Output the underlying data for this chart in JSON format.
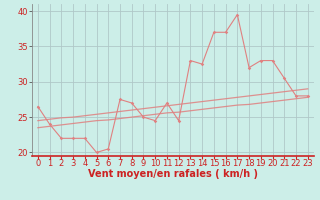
{
  "xlabel": "Vent moyen/en rafales ( km/h )",
  "background_color": "#cceee8",
  "line_color": "#e08080",
  "grid_color": "#b0c8c8",
  "xlim": [
    -0.5,
    23.5
  ],
  "ylim": [
    19.5,
    41
  ],
  "yticks": [
    20,
    25,
    30,
    35,
    40
  ],
  "xticks": [
    0,
    1,
    2,
    3,
    4,
    5,
    6,
    7,
    8,
    9,
    10,
    11,
    12,
    13,
    14,
    15,
    16,
    17,
    18,
    19,
    20,
    21,
    22,
    23
  ],
  "x": [
    0,
    1,
    2,
    3,
    4,
    5,
    6,
    7,
    8,
    9,
    10,
    11,
    12,
    13,
    14,
    15,
    16,
    17,
    18,
    19,
    20,
    21,
    22,
    23
  ],
  "y_avg": [
    26.5,
    24.0,
    22.0,
    22.0,
    22.0,
    20.0,
    20.5,
    27.5,
    27.0,
    25.0,
    24.5,
    27.0,
    24.5,
    33.0,
    32.5,
    37.0,
    37.0,
    39.5,
    32.0,
    33.0,
    33.0,
    30.5,
    28.0,
    28.0
  ],
  "y_reg1": [
    23.5,
    23.7,
    23.9,
    24.1,
    24.3,
    24.5,
    24.6,
    24.8,
    25.0,
    25.2,
    25.4,
    25.6,
    25.7,
    25.9,
    26.1,
    26.3,
    26.5,
    26.7,
    26.8,
    27.0,
    27.2,
    27.4,
    27.6,
    27.8
  ],
  "y_reg2": [
    24.5,
    24.7,
    24.9,
    25.0,
    25.2,
    25.4,
    25.6,
    25.8,
    26.0,
    26.2,
    26.4,
    26.6,
    26.8,
    27.0,
    27.2,
    27.4,
    27.6,
    27.8,
    28.0,
    28.2,
    28.4,
    28.6,
    28.8,
    29.0
  ],
  "tick_color": "#cc2222",
  "axis_label_color": "#cc2222",
  "font_size_ticks": 6,
  "font_size_xlabel": 7
}
